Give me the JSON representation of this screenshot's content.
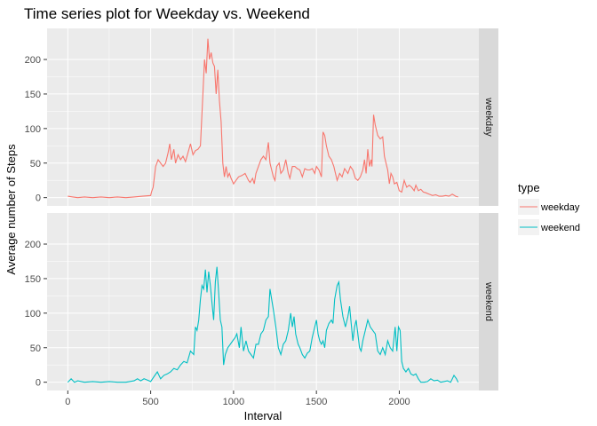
{
  "chart_data": {
    "type": "line",
    "title": "Time series plot for Weekday vs. Weekend",
    "xlabel": "Interval",
    "ylabel": "Average number of Steps",
    "xlim": [
      -125,
      2480
    ],
    "ylim": [
      -12,
      245
    ],
    "x_ticks": [
      0,
      500,
      1000,
      1500,
      2000
    ],
    "y_ticks": [
      0,
      50,
      100,
      150,
      200
    ],
    "grid": true,
    "legend": {
      "title": "type",
      "position": "right"
    },
    "panels": [
      {
        "label": "weekday",
        "series": "weekday"
      },
      {
        "label": "weekend",
        "series": "weekend"
      }
    ],
    "series": [
      {
        "name": "weekday",
        "color": "#F8766D",
        "points": [
          [
            0,
            2
          ],
          [
            30,
            1
          ],
          [
            60,
            0
          ],
          [
            100,
            1
          ],
          [
            150,
            0
          ],
          [
            200,
            1
          ],
          [
            250,
            0
          ],
          [
            300,
            1
          ],
          [
            350,
            0
          ],
          [
            400,
            1
          ],
          [
            450,
            2
          ],
          [
            500,
            3
          ],
          [
            505,
            8
          ],
          [
            515,
            15
          ],
          [
            530,
            45
          ],
          [
            545,
            55
          ],
          [
            560,
            50
          ],
          [
            575,
            45
          ],
          [
            590,
            50
          ],
          [
            605,
            65
          ],
          [
            615,
            78
          ],
          [
            625,
            55
          ],
          [
            640,
            70
          ],
          [
            650,
            50
          ],
          [
            665,
            62
          ],
          [
            680,
            55
          ],
          [
            695,
            60
          ],
          [
            710,
            52
          ],
          [
            725,
            65
          ],
          [
            740,
            78
          ],
          [
            755,
            62
          ],
          [
            770,
            68
          ],
          [
            785,
            70
          ],
          [
            800,
            75
          ],
          [
            815,
            150
          ],
          [
            825,
            200
          ],
          [
            835,
            180
          ],
          [
            845,
            230
          ],
          [
            855,
            200
          ],
          [
            865,
            210
          ],
          [
            875,
            195
          ],
          [
            885,
            190
          ],
          [
            895,
            150
          ],
          [
            905,
            185
          ],
          [
            915,
            140
          ],
          [
            925,
            110
          ],
          [
            935,
            50
          ],
          [
            945,
            30
          ],
          [
            955,
            45
          ],
          [
            965,
            30
          ],
          [
            975,
            35
          ],
          [
            985,
            28
          ],
          [
            1000,
            20
          ],
          [
            1015,
            25
          ],
          [
            1030,
            30
          ],
          [
            1050,
            32
          ],
          [
            1070,
            35
          ],
          [
            1090,
            25
          ],
          [
            1100,
            22
          ],
          [
            1115,
            28
          ],
          [
            1125,
            20
          ],
          [
            1135,
            35
          ],
          [
            1150,
            45
          ],
          [
            1165,
            55
          ],
          [
            1180,
            60
          ],
          [
            1195,
            55
          ],
          [
            1210,
            80
          ],
          [
            1220,
            50
          ],
          [
            1230,
            40
          ],
          [
            1240,
            30
          ],
          [
            1250,
            25
          ],
          [
            1260,
            45
          ],
          [
            1275,
            50
          ],
          [
            1285,
            35
          ],
          [
            1300,
            40
          ],
          [
            1315,
            55
          ],
          [
            1330,
            35
          ],
          [
            1340,
            28
          ],
          [
            1355,
            45
          ],
          [
            1370,
            45
          ],
          [
            1385,
            42
          ],
          [
            1400,
            40
          ],
          [
            1415,
            30
          ],
          [
            1430,
            42
          ],
          [
            1445,
            40
          ],
          [
            1460,
            40
          ],
          [
            1475,
            42
          ],
          [
            1490,
            35
          ],
          [
            1500,
            45
          ],
          [
            1515,
            40
          ],
          [
            1530,
            30
          ],
          [
            1540,
            95
          ],
          [
            1550,
            90
          ],
          [
            1560,
            75
          ],
          [
            1575,
            60
          ],
          [
            1590,
            55
          ],
          [
            1605,
            45
          ],
          [
            1615,
            35
          ],
          [
            1625,
            25
          ],
          [
            1640,
            35
          ],
          [
            1655,
            30
          ],
          [
            1670,
            42
          ],
          [
            1690,
            35
          ],
          [
            1705,
            45
          ],
          [
            1720,
            40
          ],
          [
            1735,
            28
          ],
          [
            1750,
            25
          ],
          [
            1765,
            30
          ],
          [
            1780,
            40
          ],
          [
            1790,
            55
          ],
          [
            1800,
            35
          ],
          [
            1810,
            70
          ],
          [
            1820,
            45
          ],
          [
            1830,
            55
          ],
          [
            1835,
            45
          ],
          [
            1845,
            120
          ],
          [
            1855,
            105
          ],
          [
            1870,
            90
          ],
          [
            1885,
            85
          ],
          [
            1900,
            88
          ],
          [
            1910,
            60
          ],
          [
            1920,
            50
          ],
          [
            1930,
            40
          ],
          [
            1940,
            20
          ],
          [
            1950,
            35
          ],
          [
            1960,
            30
          ],
          [
            1970,
            20
          ],
          [
            1985,
            22
          ],
          [
            2000,
            10
          ],
          [
            2015,
            8
          ],
          [
            2030,
            25
          ],
          [
            2045,
            15
          ],
          [
            2060,
            18
          ],
          [
            2075,
            15
          ],
          [
            2090,
            10
          ],
          [
            2100,
            18
          ],
          [
            2115,
            10
          ],
          [
            2130,
            12
          ],
          [
            2145,
            8
          ],
          [
            2160,
            7
          ],
          [
            2180,
            5
          ],
          [
            2200,
            3
          ],
          [
            2220,
            4
          ],
          [
            2240,
            2
          ],
          [
            2260,
            2
          ],
          [
            2280,
            3
          ],
          [
            2300,
            2
          ],
          [
            2320,
            5
          ],
          [
            2340,
            2
          ],
          [
            2355,
            1
          ]
        ]
      },
      {
        "name": "weekend",
        "color": "#00BFC4",
        "points": [
          [
            0,
            0
          ],
          [
            20,
            5
          ],
          [
            40,
            0
          ],
          [
            60,
            2
          ],
          [
            100,
            0
          ],
          [
            150,
            1
          ],
          [
            200,
            0
          ],
          [
            250,
            1
          ],
          [
            300,
            0
          ],
          [
            350,
            0
          ],
          [
            400,
            2
          ],
          [
            420,
            5
          ],
          [
            440,
            2
          ],
          [
            460,
            5
          ],
          [
            480,
            3
          ],
          [
            500,
            1
          ],
          [
            520,
            8
          ],
          [
            540,
            15
          ],
          [
            560,
            5
          ],
          [
            580,
            10
          ],
          [
            600,
            12
          ],
          [
            620,
            15
          ],
          [
            640,
            20
          ],
          [
            660,
            18
          ],
          [
            680,
            25
          ],
          [
            700,
            30
          ],
          [
            720,
            28
          ],
          [
            740,
            45
          ],
          [
            760,
            40
          ],
          [
            770,
            80
          ],
          [
            780,
            75
          ],
          [
            790,
            90
          ],
          [
            800,
            120
          ],
          [
            810,
            140
          ],
          [
            820,
            135
          ],
          [
            830,
            163
          ],
          [
            840,
            130
          ],
          [
            850,
            160
          ],
          [
            860,
            140
          ],
          [
            870,
            115
          ],
          [
            880,
            90
          ],
          [
            890,
            145
          ],
          [
            900,
            167
          ],
          [
            910,
            130
          ],
          [
            920,
            90
          ],
          [
            930,
            80
          ],
          [
            940,
            25
          ],
          [
            950,
            40
          ],
          [
            965,
            50
          ],
          [
            980,
            55
          ],
          [
            995,
            60
          ],
          [
            1010,
            65
          ],
          [
            1020,
            70
          ],
          [
            1035,
            50
          ],
          [
            1045,
            80
          ],
          [
            1060,
            45
          ],
          [
            1075,
            60
          ],
          [
            1090,
            45
          ],
          [
            1105,
            40
          ],
          [
            1120,
            35
          ],
          [
            1135,
            55
          ],
          [
            1150,
            55
          ],
          [
            1165,
            70
          ],
          [
            1180,
            75
          ],
          [
            1195,
            90
          ],
          [
            1210,
            95
          ],
          [
            1220,
            135
          ],
          [
            1230,
            120
          ],
          [
            1240,
            105
          ],
          [
            1255,
            80
          ],
          [
            1270,
            50
          ],
          [
            1285,
            40
          ],
          [
            1300,
            55
          ],
          [
            1315,
            60
          ],
          [
            1330,
            75
          ],
          [
            1345,
            100
          ],
          [
            1355,
            80
          ],
          [
            1365,
            95
          ],
          [
            1375,
            70
          ],
          [
            1390,
            55
          ],
          [
            1400,
            50
          ],
          [
            1415,
            40
          ],
          [
            1430,
            35
          ],
          [
            1445,
            42
          ],
          [
            1460,
            45
          ],
          [
            1475,
            65
          ],
          [
            1490,
            80
          ],
          [
            1500,
            90
          ],
          [
            1510,
            70
          ],
          [
            1520,
            60
          ],
          [
            1530,
            55
          ],
          [
            1540,
            60
          ],
          [
            1550,
            50
          ],
          [
            1560,
            75
          ],
          [
            1575,
            85
          ],
          [
            1590,
            90
          ],
          [
            1600,
            85
          ],
          [
            1610,
            120
          ],
          [
            1625,
            140
          ],
          [
            1635,
            145
          ],
          [
            1645,
            120
          ],
          [
            1660,
            95
          ],
          [
            1675,
            80
          ],
          [
            1690,
            95
          ],
          [
            1700,
            110
          ],
          [
            1710,
            85
          ],
          [
            1720,
            60
          ],
          [
            1730,
            80
          ],
          [
            1740,
            90
          ],
          [
            1750,
            70
          ],
          [
            1760,
            50
          ],
          [
            1770,
            45
          ],
          [
            1780,
            60
          ],
          [
            1795,
            75
          ],
          [
            1810,
            90
          ],
          [
            1825,
            80
          ],
          [
            1840,
            75
          ],
          [
            1855,
            70
          ],
          [
            1870,
            45
          ],
          [
            1885,
            40
          ],
          [
            1900,
            50
          ],
          [
            1915,
            40
          ],
          [
            1930,
            60
          ],
          [
            1945,
            50
          ],
          [
            1960,
            45
          ],
          [
            1975,
            80
          ],
          [
            1985,
            45
          ],
          [
            1995,
            80
          ],
          [
            2005,
            75
          ],
          [
            2015,
            30
          ],
          [
            2025,
            20
          ],
          [
            2040,
            15
          ],
          [
            2055,
            20
          ],
          [
            2070,
            12
          ],
          [
            2085,
            10
          ],
          [
            2100,
            12
          ],
          [
            2115,
            5
          ],
          [
            2130,
            0
          ],
          [
            2150,
            0
          ],
          [
            2170,
            1
          ],
          [
            2190,
            5
          ],
          [
            2210,
            2
          ],
          [
            2230,
            3
          ],
          [
            2250,
            0
          ],
          [
            2270,
            1
          ],
          [
            2290,
            2
          ],
          [
            2310,
            0
          ],
          [
            2330,
            10
          ],
          [
            2345,
            5
          ],
          [
            2355,
            0
          ]
        ]
      }
    ]
  }
}
